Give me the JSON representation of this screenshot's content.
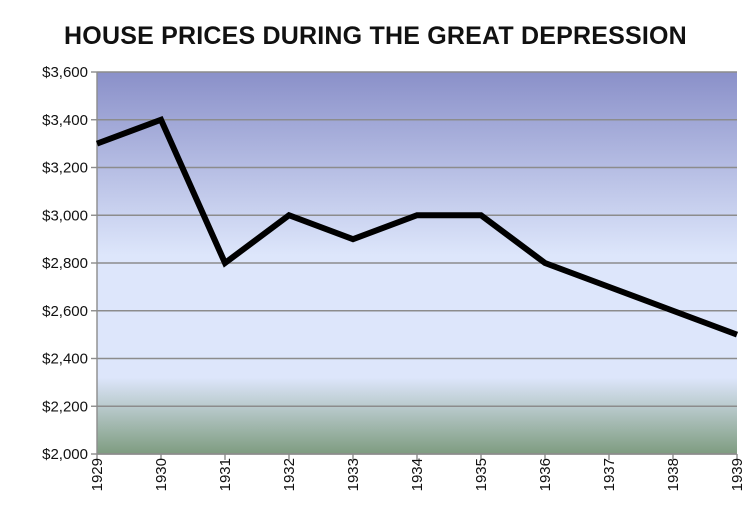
{
  "chart_data": {
    "type": "line",
    "title": "HOUSE PRICES DURING THE GREAT DEPRESSION",
    "xlabel": "",
    "ylabel": "",
    "x": [
      "1929",
      "1930",
      "1931",
      "1932",
      "1933",
      "1934",
      "1935",
      "1936",
      "1937",
      "1938",
      "1939"
    ],
    "series": [
      {
        "name": "House price",
        "values": [
          3300,
          3400,
          2800,
          3000,
          2900,
          3000,
          3000,
          2800,
          2700,
          2600,
          2500
        ]
      }
    ],
    "ylim": [
      2000,
      3600
    ],
    "yticks": [
      2000,
      2200,
      2400,
      2600,
      2800,
      3000,
      3200,
      3400,
      3600
    ],
    "ytick_labels": [
      "$2,000",
      "$2,200",
      "$2,400",
      "$2,600",
      "$2,800",
      "$3,000",
      "$3,200",
      "$3,400",
      "$3,600"
    ],
    "grid": true,
    "legend": "none",
    "colors": {
      "line": "#000000",
      "grid": "#8c8c8c",
      "bg_top": "#8a90c9",
      "bg_mid": "#dde6fb",
      "bg_bottom": "#7e9c80"
    }
  }
}
